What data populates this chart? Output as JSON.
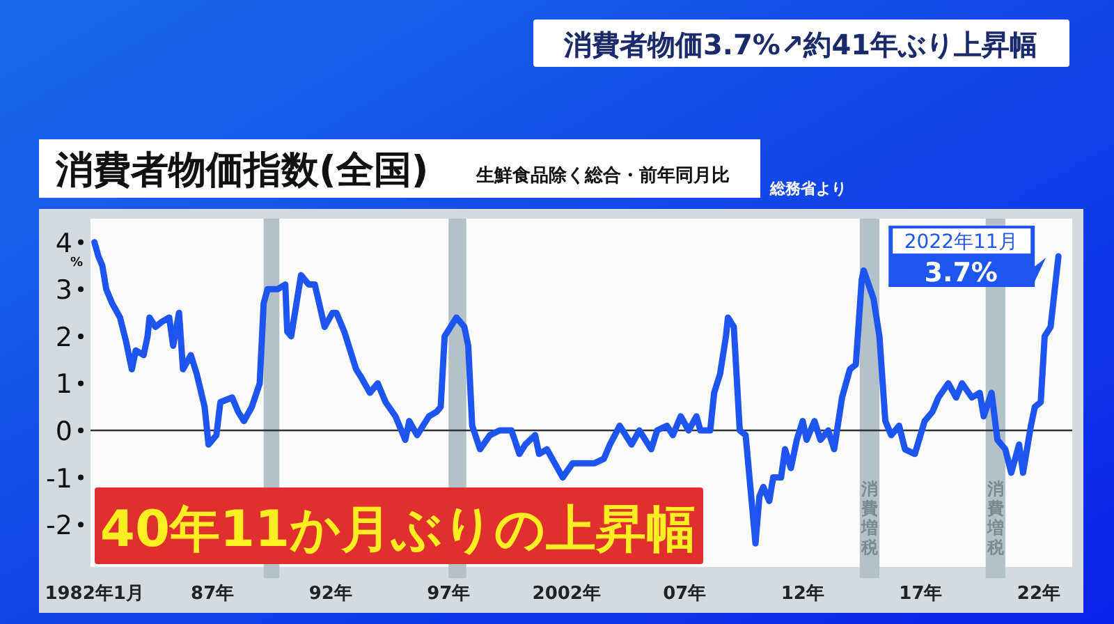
{
  "chart_data": {
    "type": "line",
    "title": "消費者物価指数(全国)",
    "subtitle": "生鮮食品除く総合・前年同月比",
    "ylabel": "%",
    "annotations": [
      "消費者物価3.7%↗約41年ぶり上昇幅",
      "総務省より",
      "40年11か月ぶりの上昇幅",
      {
        "text": "2022年11月",
        "x": "2022-11",
        "y": 3.7
      },
      {
        "text": "3.7%",
        "x": "2022-11",
        "y": 3.7
      }
    ],
    "color": "#1e55f0",
    "x": [
      "1982-01",
      "1982-03",
      "1982-05",
      "1982-07",
      "1982-10",
      "1983-02",
      "1983-05",
      "1983-08",
      "1983-10",
      "1984-02",
      "1984-04",
      "1984-05",
      "1984-08",
      "1984-11",
      "1985-03",
      "1985-05",
      "1985-08",
      "1985-10",
      "1986-02",
      "1986-05",
      "1986-09",
      "1986-11",
      "1987-03",
      "1987-05",
      "1987-11",
      "1988-02",
      "1988-05",
      "1988-09",
      "1989-01",
      "1989-03",
      "1989-05",
      "1989-10",
      "1990-02",
      "1990-03",
      "1990-05",
      "1990-10",
      "1991-02",
      "1991-05",
      "1991-10",
      "1992-02",
      "1992-04",
      "1992-08",
      "1993-02",
      "1993-05",
      "1993-09",
      "1994-01",
      "1994-05",
      "1994-10",
      "1995-03",
      "1995-05",
      "1995-09",
      "1996-03",
      "1996-07",
      "1996-09",
      "1996-11",
      "1997-05",
      "1997-09",
      "1997-11",
      "1998-01",
      "1998-05",
      "1998-10",
      "1999-03",
      "1999-09",
      "2000-01",
      "2000-04",
      "2000-09",
      "2000-11",
      "2001-03",
      "2001-07",
      "2001-11",
      "2002-04",
      "2002-09",
      "2003-03",
      "2003-08",
      "2003-11",
      "2004-04",
      "2004-10",
      "2005-02",
      "2005-08",
      "2005-11",
      "2006-04",
      "2006-07",
      "2006-11",
      "2007-03",
      "2007-07",
      "2007-09",
      "2008-02",
      "2008-04",
      "2008-07",
      "2008-10",
      "2008-11",
      "2009-02",
      "2009-05",
      "2009-08",
      "2010-01",
      "2010-03",
      "2010-05",
      "2010-08",
      "2010-10",
      "2011-02",
      "2011-04",
      "2011-07",
      "2011-10",
      "2012-01",
      "2012-03",
      "2012-07",
      "2012-10",
      "2013-02",
      "2013-05",
      "2013-09",
      "2014-01",
      "2014-04",
      "2014-07",
      "2014-08",
      "2015-01",
      "2015-04",
      "2015-07",
      "2015-10",
      "2016-02",
      "2016-05",
      "2016-10",
      "2017-03",
      "2017-07",
      "2017-10",
      "2018-03",
      "2018-07",
      "2018-10",
      "2019-03",
      "2019-07",
      "2019-09",
      "2020-01",
      "2020-04",
      "2020-08",
      "2020-11",
      "2021-03",
      "2021-05",
      "2021-09",
      "2021-11",
      "2022-02",
      "2022-04",
      "2022-07",
      "2022-11"
    ],
    "values": [
      4.0,
      3.7,
      3.5,
      3.0,
      2.7,
      2.4,
      1.9,
      1.3,
      1.7,
      1.6,
      2.0,
      2.4,
      2.2,
      2.3,
      2.4,
      1.8,
      2.5,
      1.3,
      1.6,
      1.2,
      0.5,
      -0.3,
      -0.1,
      0.6,
      0.7,
      0.4,
      0.2,
      0.5,
      1.0,
      2.7,
      3.0,
      3.0,
      3.1,
      2.1,
      2.0,
      3.3,
      3.1,
      3.1,
      2.2,
      2.5,
      2.5,
      2.1,
      1.3,
      1.1,
      0.8,
      1.0,
      0.6,
      0.3,
      -0.2,
      0.2,
      -0.1,
      0.3,
      0.4,
      0.5,
      2.0,
      2.4,
      2.2,
      1.8,
      0.1,
      -0.4,
      -0.1,
      0.0,
      0.0,
      -0.5,
      -0.3,
      -0.1,
      -0.5,
      -0.4,
      -0.7,
      -1.0,
      -0.7,
      -0.7,
      -0.7,
      -0.6,
      -0.3,
      0.1,
      -0.3,
      0.0,
      -0.4,
      0.0,
      0.1,
      -0.1,
      0.3,
      0.0,
      0.3,
      0.0,
      0.0,
      0.8,
      1.2,
      2.0,
      2.4,
      2.2,
      0.0,
      -0.1,
      -2.4,
      -1.4,
      -1.2,
      -1.5,
      -1.0,
      -1.0,
      -0.4,
      -0.8,
      -0.2,
      0.2,
      -0.2,
      0.2,
      -0.2,
      0.0,
      -0.4,
      0.7,
      1.3,
      1.4,
      3.2,
      3.4,
      2.8,
      2.0,
      0.2,
      -0.1,
      0.1,
      -0.4,
      -0.5,
      0.2,
      0.4,
      0.7,
      1.0,
      0.7,
      1.0,
      0.7,
      0.8,
      0.3,
      0.8,
      -0.2,
      -0.4,
      -0.9,
      -0.3,
      -0.9,
      0.1,
      0.5,
      0.6,
      2.0,
      2.2,
      3.7
    ],
    "xlim": [
      "1981-11",
      "2023-06"
    ],
    "ylim": [
      -2.9,
      4.5
    ],
    "xticks": [
      {
        "value": "1982-01",
        "label": "1982年1月"
      },
      {
        "value": "1987-01",
        "label": "87年"
      },
      {
        "value": "1992-01",
        "label": "92年"
      },
      {
        "value": "1997-01",
        "label": "97年"
      },
      {
        "value": "2002-01",
        "label": "2002年"
      },
      {
        "value": "2007-01",
        "label": "07年"
      },
      {
        "value": "2012-01",
        "label": "12年"
      },
      {
        "value": "2017-01",
        "label": "17年"
      },
      {
        "value": "2022-01",
        "label": "22年"
      }
    ],
    "yticks": [
      -2,
      -1,
      0,
      1,
      2,
      3,
      4
    ],
    "ref_lines": [
      {
        "axis": "y",
        "value": 0,
        "color": "#333333"
      }
    ],
    "bands": [
      {
        "axis": "x",
        "from": "1989-03",
        "to": "1989-11",
        "color": "#b4c1c8"
      },
      {
        "axis": "x",
        "from": "1997-01",
        "to": "1997-10",
        "color": "#b4c1c8"
      },
      {
        "axis": "x",
        "from": "2014-06",
        "to": "2015-04",
        "label": "消費増税",
        "color": "#b4c1c8"
      },
      {
        "axis": "x",
        "from": "2019-10",
        "to": "2020-08",
        "label": "消費増税",
        "color": "#b4c1c8"
      }
    ]
  }
}
